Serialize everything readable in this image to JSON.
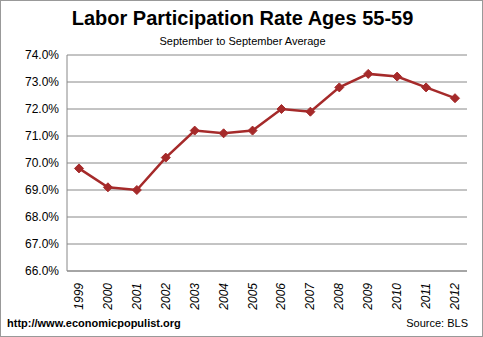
{
  "chart_data": {
    "type": "line",
    "title": "Labor Participation Rate Ages 55-59",
    "subtitle": "September to September Average",
    "categories": [
      "1999",
      "2000",
      "2001",
      "2002",
      "2003",
      "2004",
      "2005",
      "2006",
      "2007",
      "2008",
      "2009",
      "2010",
      "2011",
      "2012"
    ],
    "values": [
      69.8,
      69.1,
      69.0,
      70.2,
      71.2,
      71.1,
      71.2,
      72.0,
      71.9,
      72.8,
      73.3,
      73.2,
      72.8,
      72.4
    ],
    "color": "#a52a2a",
    "marker": "diamond",
    "ylim": [
      66,
      74
    ],
    "yticks": [
      {
        "value": 66,
        "label": "66.0%"
      },
      {
        "value": 67,
        "label": "67.0%"
      },
      {
        "value": 68,
        "label": "68.0%"
      },
      {
        "value": 69,
        "label": "69.0%"
      },
      {
        "value": 70,
        "label": "70.0%"
      },
      {
        "value": 71,
        "label": "71.0%"
      },
      {
        "value": 72,
        "label": "72.0%"
      },
      {
        "value": 73,
        "label": "73.0%"
      },
      {
        "value": 74,
        "label": "74.0%"
      }
    ],
    "grid": true,
    "annotations": [
      "http://www.economicpopulist.org",
      "Source: BLS"
    ]
  }
}
